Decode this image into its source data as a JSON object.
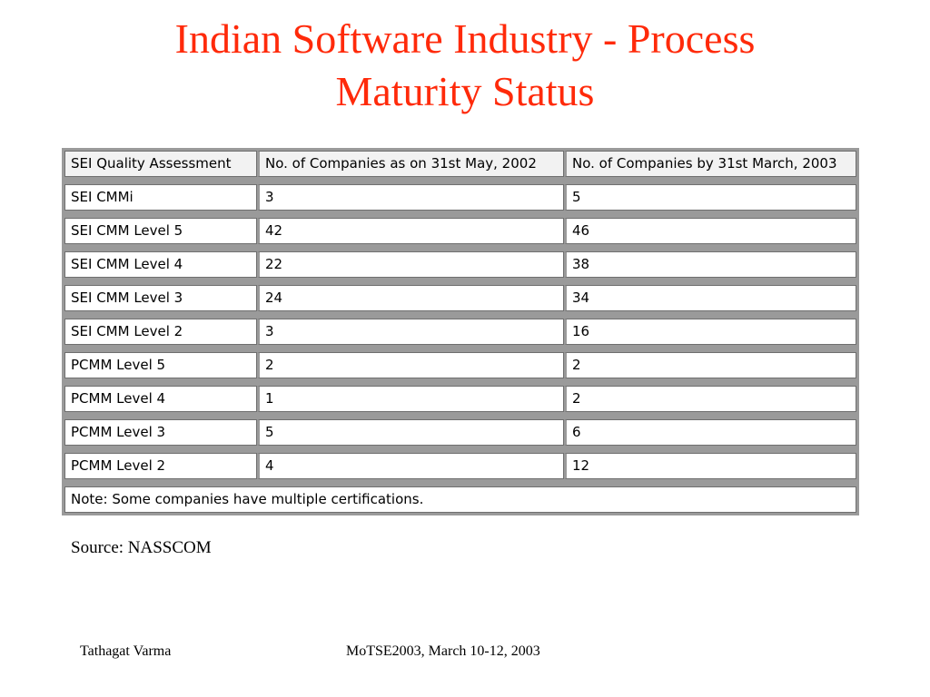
{
  "title": {
    "line1": "Indian Software Industry - Process",
    "line2": "Maturity Status"
  },
  "table": {
    "headers": [
      "SEI Quality Assessment",
      "No. of Companies as on 31st May, 2002",
      "No. of Companies by 31st March, 2003"
    ],
    "rows": [
      [
        "SEI CMMi",
        "3",
        "5"
      ],
      [
        "SEI CMM Level 5",
        "42",
        "46"
      ],
      [
        "SEI CMM Level 4",
        "22",
        "38"
      ],
      [
        "SEI CMM Level 3",
        "24",
        "34"
      ],
      [
        "SEI CMM Level 2",
        "3",
        "16"
      ],
      [
        "PCMM Level 5",
        "2",
        "2"
      ],
      [
        "PCMM Level 4",
        "1",
        "2"
      ],
      [
        "PCMM Level 3",
        "5",
        "6"
      ],
      [
        "PCMM Level 2",
        "4",
        "12"
      ]
    ],
    "note": "Note: Some companies have multiple certifications."
  },
  "source": "Source: NASSCOM",
  "footer": {
    "author": "Tathagat Varma",
    "event": "MoTSE2003, March 10-12, 2003"
  }
}
